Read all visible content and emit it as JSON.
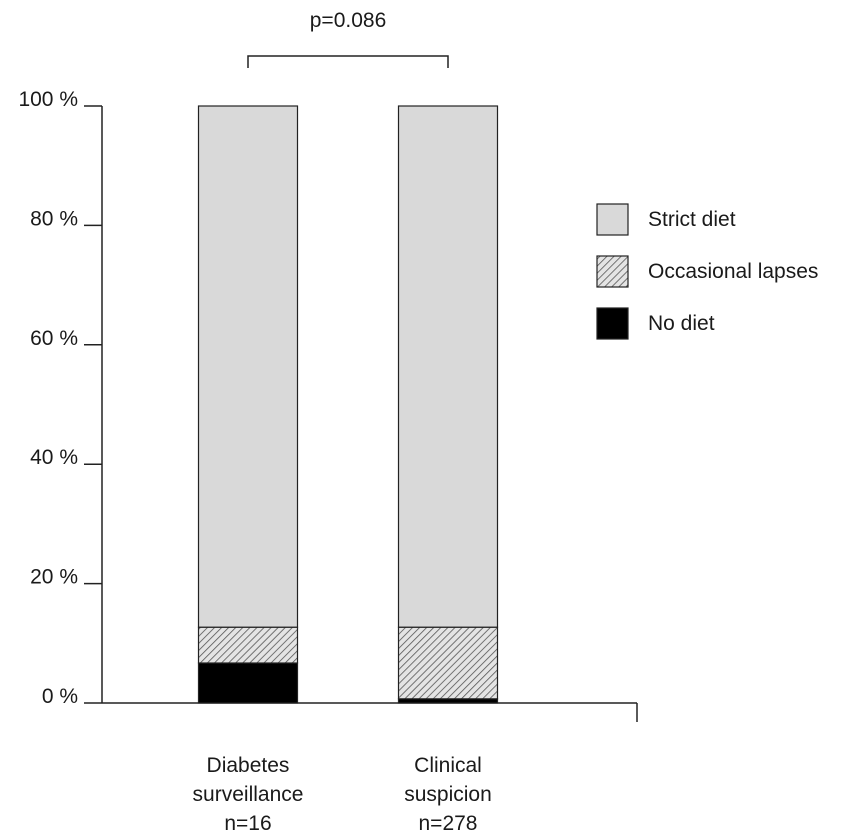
{
  "chart_data": {
    "type": "bar",
    "stacked": true,
    "categories": [
      [
        "Diabetes",
        "surveillance",
        "n=16"
      ],
      [
        "Clinical",
        "suspicion",
        "n=278"
      ]
    ],
    "series": [
      {
        "name": "No diet",
        "values": [
          6.7,
          0.7
        ],
        "color": "#000000",
        "pattern": "solid"
      },
      {
        "name": "Occasional lapses",
        "values": [
          6.0,
          12.0
        ],
        "color": "#bbbbbb",
        "pattern": "hatched"
      },
      {
        "name": "Strict diet",
        "values": [
          87.3,
          87.3
        ],
        "color": "#d9d9d9",
        "pattern": "solid"
      }
    ],
    "ylim": [
      0,
      100
    ],
    "yticks": [
      0,
      20,
      40,
      60,
      80,
      100
    ],
    "ytick_labels": [
      "0 %",
      "20 %",
      "40 %",
      "60 %",
      "80 %",
      "100 %"
    ],
    "legend_order": [
      "Strict diet",
      "Occasional lapses",
      "No diet"
    ],
    "legend_position": "right",
    "annotation": {
      "text": "p=0.086",
      "type": "bracket",
      "spans": [
        0,
        1
      ]
    },
    "grid": false
  }
}
